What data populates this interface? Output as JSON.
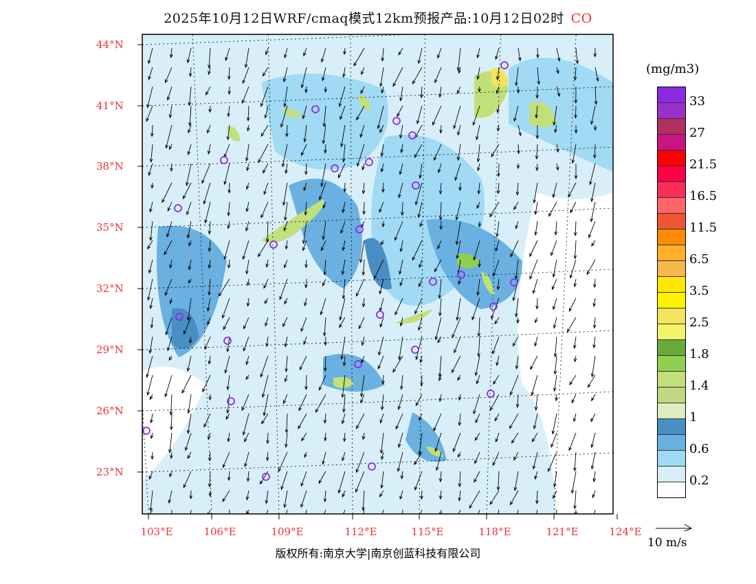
{
  "title": {
    "text": "2025年10月12日WRF/cmaq模式12km预报产品:10月12日02时",
    "species": "CO"
  },
  "map": {
    "lat_labels": [
      "44°N",
      "41°N",
      "38°N",
      "35°N",
      "32°N",
      "29°N",
      "26°N",
      "23°N"
    ],
    "lon_labels": [
      "103°E",
      "106°E",
      "109°E",
      "112°E",
      "115°E",
      "118°E",
      "121°E",
      "124°E"
    ]
  },
  "colorbar": {
    "unit": "(mg/m3)",
    "colors": [
      "#8a2be2",
      "#9932cc",
      "#b03060",
      "#c71585",
      "#ff0000",
      "#ff0044",
      "#f82e58",
      "#ff6666",
      "#ee5530",
      "#ff8c00",
      "#ffb028",
      "#f5b84d",
      "#ffe800",
      "#fff200",
      "#f2e45c",
      "#f2f56a",
      "#6aaa3a",
      "#90d050",
      "#c2e07a",
      "#c2d880",
      "#e0ebc0",
      "#4a8ec4",
      "#6ab0e0",
      "#a0daf5",
      "#d8effa",
      "#ffffff"
    ],
    "labels": [
      "33",
      "27",
      "21.5",
      "16.5",
      "11.5",
      "6.5",
      "3.5",
      "2.5",
      "1.8",
      "1.4",
      "1",
      "0.6",
      "0.2"
    ]
  },
  "wind_reference": "10 m/s",
  "footer": "版权所有:南京大学|南京创蓝科技有限公司"
}
